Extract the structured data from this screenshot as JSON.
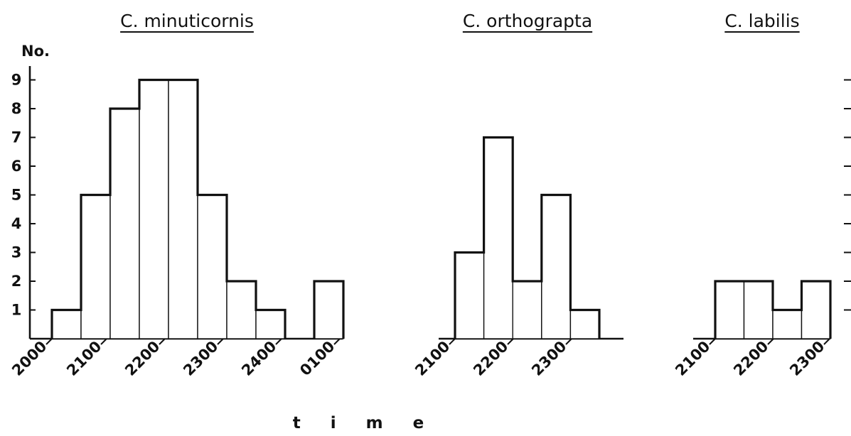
{
  "chart_data": [
    {
      "type": "bar",
      "title": "C. minuticornis",
      "ylabel": "No.",
      "xlabel": "time",
      "y_ticks": [
        "1",
        "2",
        "3",
        "4",
        "5",
        "6",
        "7",
        "8",
        "9"
      ],
      "x_ticks": [
        "2000",
        "2100",
        "2200",
        "2300",
        "2400",
        "0100"
      ],
      "ylim": [
        0,
        9
      ],
      "bin_width_minutes": 30,
      "bins": [
        {
          "start": "2000",
          "end": "2030",
          "value": 0
        },
        {
          "start": "2030",
          "end": "2100",
          "value": 1
        },
        {
          "start": "2100",
          "end": "2130",
          "value": 5
        },
        {
          "start": "2130",
          "end": "2200",
          "value": 8
        },
        {
          "start": "2200",
          "end": "2230",
          "value": 9
        },
        {
          "start": "2230",
          "end": "2300",
          "value": 9
        },
        {
          "start": "2300",
          "end": "2330",
          "value": 5
        },
        {
          "start": "2330",
          "end": "2400",
          "value": 2
        },
        {
          "start": "2400",
          "end": "0030",
          "value": 1
        },
        {
          "start": "0030",
          "end": "0100",
          "value": 0
        },
        {
          "start": "0100",
          "end": "0130",
          "value": 2
        }
      ]
    },
    {
      "type": "bar",
      "title": "C. orthograpta",
      "x_ticks": [
        "2100",
        "2200",
        "2300"
      ],
      "bin_width_minutes": 15,
      "bins": [
        {
          "start": "2100",
          "end": "2115",
          "value": 3
        },
        {
          "start": "2115",
          "end": "2130",
          "value": 7
        },
        {
          "start": "2130",
          "end": "2145",
          "value": 2
        },
        {
          "start": "2145",
          "end": "2200",
          "value": 5
        },
        {
          "start": "2200",
          "end": "2215",
          "value": 1
        }
      ]
    },
    {
      "type": "bar",
      "title": "C. labilis",
      "x_ticks": [
        "2100",
        "2200",
        "2300"
      ],
      "bin_width_minutes": 30,
      "bins": [
        {
          "start": "2100",
          "end": "2130",
          "value": 2
        },
        {
          "start": "2130",
          "end": "2200",
          "value": 2
        },
        {
          "start": "2200",
          "end": "2230",
          "value": 1
        },
        {
          "start": "2230",
          "end": "2300",
          "value": 2
        }
      ]
    }
  ]
}
